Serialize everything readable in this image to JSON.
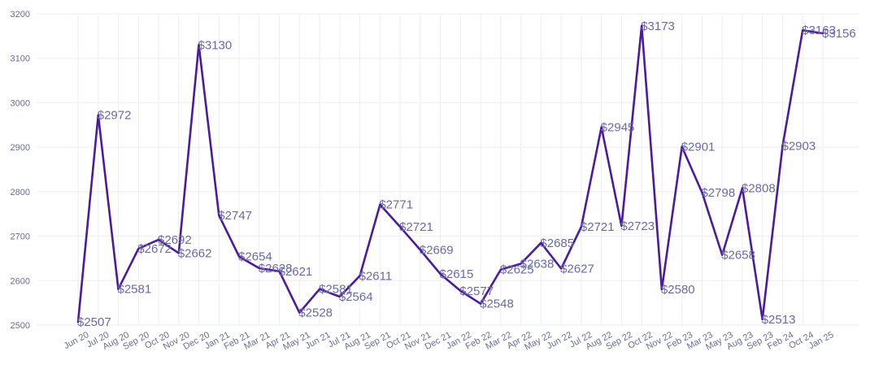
{
  "chart_data": {
    "type": "line",
    "title": "",
    "xlabel": "",
    "ylabel": "",
    "ylim": [
      2500,
      3200
    ],
    "yticks": [
      2500,
      2600,
      2700,
      2800,
      2900,
      3000,
      3100,
      3200
    ],
    "grid": true,
    "legend": "none",
    "line_color": "#4a1aa0",
    "label_prefix": "$",
    "categories": [
      "Jun 20",
      "Jul 20",
      "Aug 20",
      "Sep 20",
      "Oct 20",
      "Nov 20",
      "Dec 20",
      "Jan 21",
      "Feb 21",
      "Mar 21",
      "Apr 21",
      "May 21",
      "Jun 21",
      "Jul 21",
      "Aug 21",
      "Sep 21",
      "Oct 21",
      "Nov 21",
      "Dec 21",
      "Jan 22",
      "Feb 22",
      "Mar 22",
      "Apr 22",
      "May 22",
      "Jun 22",
      "Jul 22",
      "Aug 22",
      "Sep 22",
      "Oct 22",
      "Nov 22",
      "Feb 23",
      "Mar 23",
      "May 23",
      "Aug 23",
      "Sep 23",
      "Feb 24",
      "Oct 24",
      "Jan 25"
    ],
    "values": [
      2507,
      2972,
      2581,
      2672,
      2692,
      2662,
      3130,
      2747,
      2654,
      2628,
      2621,
      2528,
      2581,
      2564,
      2611,
      2771,
      2721,
      2669,
      2615,
      2577,
      2548,
      2625,
      2638,
      2685,
      2627,
      2721,
      2945,
      2723,
      3173,
      2580,
      2901,
      2798,
      2658,
      2808,
      2513,
      2903,
      3163,
      3156
    ]
  }
}
